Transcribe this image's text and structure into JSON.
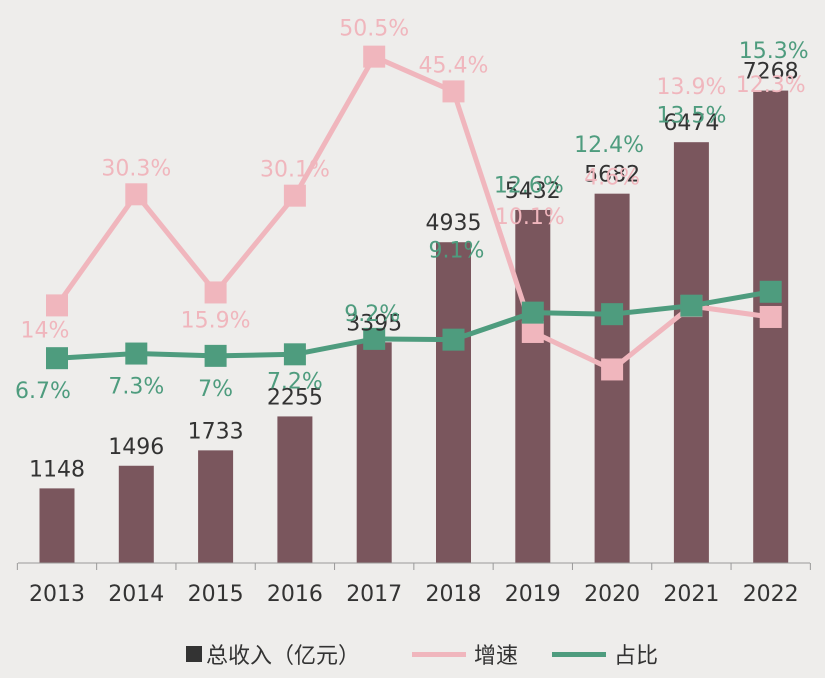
{
  "colors": {
    "background": "#eeedeb",
    "bar": "#7a565d",
    "growth": "#f0b6bd",
    "share": "#4e9c7e",
    "axis_text": "#333333"
  },
  "legend": {
    "revenue": "总收入（亿元）",
    "growth": "增速",
    "share": "占比"
  },
  "chart_data": {
    "type": "bar",
    "categories": [
      "2013",
      "2014",
      "2015",
      "2016",
      "2017",
      "2018",
      "2019",
      "2020",
      "2021",
      "2022"
    ],
    "ylim": [
      0,
      8000
    ],
    "grid": false,
    "legend_position": "bottom",
    "series": [
      {
        "name": "总收入（亿元）",
        "kind": "bar",
        "values": [
          1148,
          1496,
          1733,
          2255,
          3395,
          4935,
          5432,
          5682,
          6474,
          7268
        ],
        "labels": [
          "1148",
          "1496",
          "1733",
          "2255",
          "3395",
          "4935",
          "5432",
          "5682",
          "6474",
          "7268"
        ]
      },
      {
        "name": "增速",
        "kind": "line",
        "values": [
          14,
          30.3,
          15.9,
          30.1,
          50.5,
          45.4,
          10.1,
          4.6,
          13.9,
          12.3
        ],
        "labels": [
          "14%",
          "30.3%",
          "15.9%",
          "30.1%",
          "50.5%",
          "45.4%",
          "10.1%",
          "4.6%",
          "13.9%",
          "12.3%"
        ]
      },
      {
        "name": "占比",
        "kind": "line",
        "values": [
          6.7,
          7.3,
          7,
          7.2,
          9.2,
          9.1,
          12.6,
          12.4,
          13.5,
          15.3
        ],
        "labels": [
          "6.7%",
          "7.3%",
          "7%",
          "7.2%",
          "9.2%",
          "9.1%",
          "12.6%",
          "12.4%",
          "13.5%",
          "15.3%"
        ]
      }
    ]
  }
}
